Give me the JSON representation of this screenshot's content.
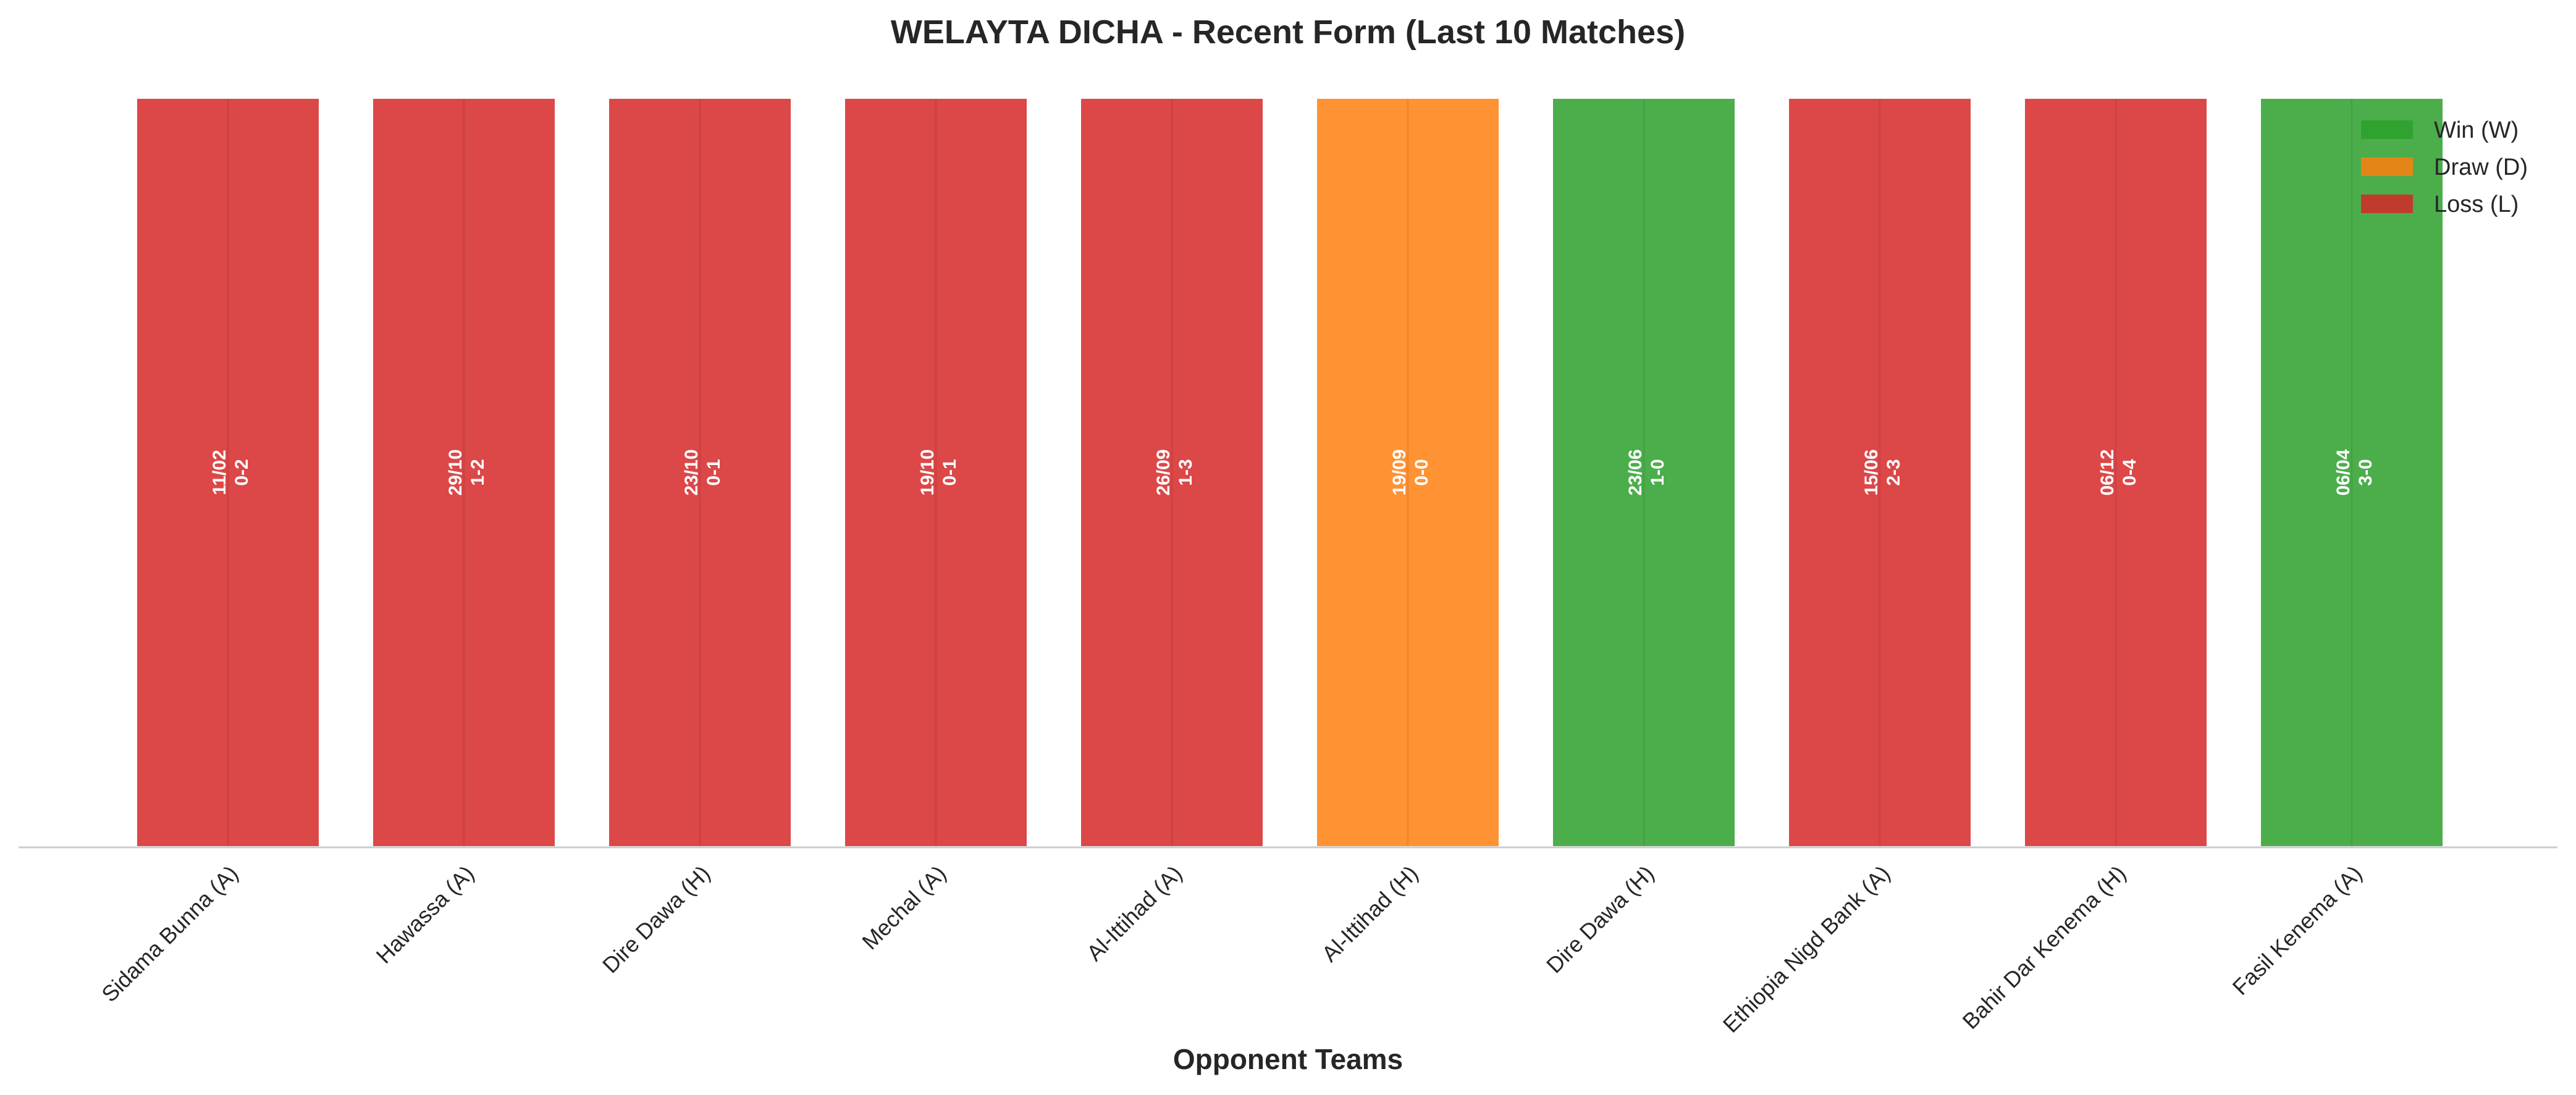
{
  "chart_data": {
    "type": "bar",
    "title": "WELAYTA DICHA - Recent Form (Last 10 Matches)",
    "xlabel": "Opponent Teams",
    "ylabel": "",
    "grid": false,
    "legend_position": "top-right",
    "categories": [
      "Sidama Bunna (A)",
      "Hawassa (A)",
      "Dire Dawa (H)",
      "Mechal (A)",
      "Al-Ittihad (A)",
      "Al-Ittihad (H)",
      "Dire Dawa (H)",
      "Ethiopia Nigd Bank (A)",
      "Bahir Dar Kenema (H)",
      "Fasil Kenema (A)"
    ],
    "values": [
      1,
      1,
      1,
      1,
      1,
      1,
      1,
      1,
      1,
      1
    ],
    "results": [
      "L",
      "L",
      "L",
      "L",
      "L",
      "D",
      "W",
      "L",
      "L",
      "W"
    ],
    "dates": [
      "11/02",
      "29/10",
      "23/10",
      "19/10",
      "26/09",
      "19/09",
      "23/06",
      "15/06",
      "06/12",
      "06/04"
    ],
    "scores": [
      "0-2",
      "1-2",
      "0-1",
      "0-1",
      "1-3",
      "0-0",
      "1-0",
      "2-3",
      "0-4",
      "3-0"
    ],
    "legend": [
      {
        "key": "W",
        "label": "Win (W)",
        "color": "#2ca02c"
      },
      {
        "key": "D",
        "label": "Draw (D)",
        "color": "#ff7f0e"
      },
      {
        "key": "L",
        "label": "Loss (L)",
        "color": "#d62728"
      }
    ]
  }
}
